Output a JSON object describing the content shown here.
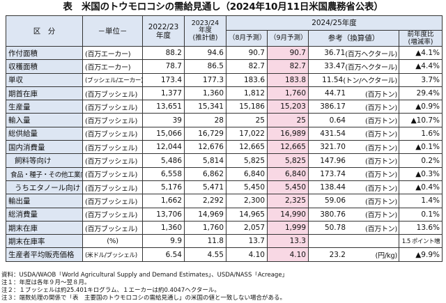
{
  "title": "表　米国のトウモロコシの需給見通し（2024年10月11日米国農務省公表）",
  "header": {
    "kubun": "区　分",
    "unit": "－単位－",
    "y2022": "2022/23\n年度",
    "y2023": "2023/24\n年度\n(推計値)",
    "y2024": "2024/25年度",
    "aug": "（8月予測）",
    "sep": "（9月予測）",
    "conv": "参考（換算値）",
    "change": "前年度比\n(増減率)"
  },
  "rows": [
    {
      "label": "作付面積",
      "unit": "(百万エーカー)",
      "v22": "88.2",
      "v23": "94.6",
      "aug": "90.7",
      "sep": "90.7",
      "conv": "36.71",
      "conv_unit": "(百万ヘクタール)",
      "change": "▲4.1%"
    },
    {
      "label": "収穫面積",
      "unit": "(百万エーカー)",
      "v22": "78.7",
      "v23": "86.5",
      "aug": "82.7",
      "sep": "82.7",
      "conv": "33.47",
      "conv_unit": "(百万ヘクタール)",
      "change": "▲4.4%"
    },
    {
      "label": "単収",
      "unit": "(ブッシェル/エーカー)",
      "v22": "173.4",
      "v23": "177.3",
      "aug": "183.6",
      "sep": "183.8",
      "conv": "11.54",
      "conv_unit": "(トン/ヘクタール)",
      "change": "3.7%"
    },
    {
      "label": "期首在庫",
      "unit": "(百万ブッシェル)",
      "v22": "1,377",
      "v23": "1,360",
      "aug": "1,812",
      "sep": "1,760",
      "conv": "44.71",
      "conv_unit": "(百万トン)",
      "change": "29.4%"
    },
    {
      "label": "生産量",
      "unit": "(百万ブッシェル)",
      "v22": "13,651",
      "v23": "15,341",
      "aug": "15,186",
      "sep": "15,203",
      "conv": "386.17",
      "conv_unit": "(百万トン)",
      "change": "▲0.9%"
    },
    {
      "label": "輸入量",
      "unit": "(百万ブッシェル)",
      "v22": "39",
      "v23": "28",
      "aug": "25",
      "sep": "25",
      "conv": "0.64",
      "conv_unit": "(百万トン)",
      "change": "▲10.7%"
    },
    {
      "label": "総供給量",
      "unit": "(百万ブッシェル)",
      "v22": "15,066",
      "v23": "16,729",
      "aug": "17,022",
      "sep": "16,989",
      "conv": "431.54",
      "conv_unit": "(百万トン)",
      "change": "1.6%"
    },
    {
      "label": "国内消費量",
      "unit": "(百万ブッシェル)",
      "v22": "12,044",
      "v23": "12,676",
      "aug": "12,665",
      "sep": "12,665",
      "conv": "321.70",
      "conv_unit": "(百万トン)",
      "change": "▲0.1%"
    },
    {
      "label": "飼料等向け",
      "unit": "(百万ブッシェル)",
      "v22": "5,486",
      "v23": "5,814",
      "aug": "5,825",
      "sep": "5,825",
      "conv": "147.96",
      "conv_unit": "(百万トン)",
      "change": "0.2%"
    },
    {
      "label": "食品・種子・その他工業向け",
      "unit": "(百万ブッシェル)",
      "v22": "6,558",
      "v23": "6,862",
      "aug": "6,840",
      "sep": "6,840",
      "conv": "173.74",
      "conv_unit": "(百万トン)",
      "change": "▲0.3%"
    },
    {
      "label": "うちエタノール向け",
      "unit": "(百万ブッシェル)",
      "v22": "5,176",
      "v23": "5,471",
      "aug": "5,450",
      "sep": "5,450",
      "conv": "138.44",
      "conv_unit": "(百万トン)",
      "change": "▲0.4%"
    },
    {
      "label": "輸出量",
      "unit": "(百万ブッシェル)",
      "v22": "1,662",
      "v23": "2,292",
      "aug": "2,300",
      "sep": "2,325",
      "conv": "59.06",
      "conv_unit": "(百万トン)",
      "change": "1.4%"
    },
    {
      "label": "総消費量",
      "unit": "(百万ブッシェル)",
      "v22": "13,706",
      "v23": "14,969",
      "aug": "14,965",
      "sep": "14,990",
      "conv": "380.76",
      "conv_unit": "(百万トン)",
      "change": "0.1%"
    },
    {
      "label": "期末在庫",
      "unit": "(百万ブッシェル)",
      "v22": "1,360",
      "v23": "1,760",
      "aug": "2,057",
      "sep": "1,999",
      "conv": "50.78",
      "conv_unit": "(百万トン)",
      "change": "13.6%"
    },
    {
      "label": "期末在庫率",
      "unit": "(%)",
      "v22": "9.9",
      "v23": "11.8",
      "aug": "13.7",
      "sep": "13.3",
      "conv": "",
      "conv_unit": "",
      "change": "1.5 ポイント増"
    },
    {
      "label": "生産者平均販売価格",
      "unit": "(米ドル/ブッシェル)",
      "v22": "6.54",
      "v23": "4.55",
      "aug": "4.10",
      "sep": "4.10",
      "conv": "23.2",
      "conv_unit": "(円/kg)",
      "change": "▲9.9%"
    }
  ],
  "notes": [
    "資料：USDA/WAOB「World Agricultural Supply and Demand Estimates」、USDA/NASS「Acreage」",
    "注１：年度は各年９月～翌８月。",
    "注２：１ブッシェルは約25.401キログラム、１エーカーは約0.4047ヘクタール。",
    "注３：端数処理の関係で「表　主要国のトウモロコシの需給見通し」の米国の値と一致しない場合がある。"
  ]
}
